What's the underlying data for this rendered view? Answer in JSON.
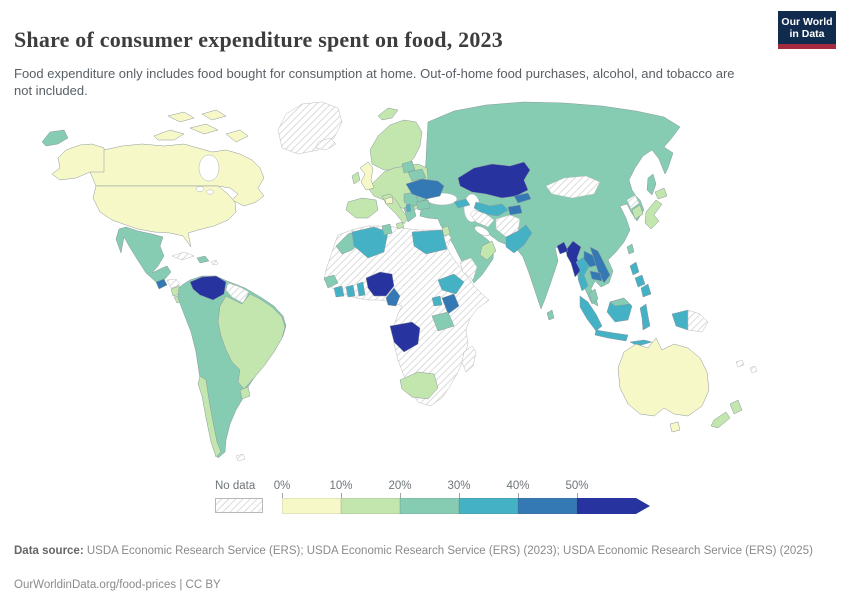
{
  "header": {
    "title": "Share of consumer expenditure spent on food, 2023",
    "subtitle": "Food expenditure only includes food bought for consumption at home. Out-of-home food purchases, alcohol, and tobacco are not included.",
    "logo": {
      "line1": "Our World",
      "line2": "in Data",
      "bg_color": "#102b4e",
      "bar_color": "#a62b3e"
    }
  },
  "legend": {
    "no_data_label": "No data",
    "tick_labels": [
      "0%",
      "10%",
      "20%",
      "30%",
      "40%",
      "50%"
    ],
    "colors": [
      "#f7f8c7",
      "#c3e5ae",
      "#85ccb2",
      "#45b1c5",
      "#3478b4",
      "#27339e"
    ]
  },
  "footer": {
    "source_label": "Data source:",
    "source_text": "USDA Economic Research Service (ERS); USDA Economic Research Service (ERS) (2023); USDA Economic Research Service (ERS) (2025)",
    "note": "OurWorldinData.org/food-prices | CC BY"
  },
  "chart_data": {
    "type": "choropleth-map",
    "title": "Share of consumer expenditure spent on food, 2023",
    "bins": [
      "0-10%",
      "10-20%",
      "20-30%",
      "30-40%",
      "40-50%",
      "50%+",
      "No data"
    ],
    "legend_position": "bottom",
    "countries": {
      "canada": 0,
      "united-states": 0,
      "australia": 0,
      "united-kingdom": 0,
      "switzerland": 0,
      "ireland": 1,
      "scandinavia": 1,
      "svalbard": 1,
      "europe-mainland": 1,
      "iberia": 1,
      "italy": 1,
      "south-korea": 1,
      "japan": 1,
      "oman": 1,
      "levant": 1,
      "costa-rica": 1,
      "panama": 1,
      "nicaragua": 1,
      "brazil": 1,
      "uruguay": 1,
      "chile": 1,
      "south-africa": 1,
      "new-zealand": 1,
      "eurasia": 2,
      "south-america": 2,
      "mexico": 2,
      "dominican-republic": 2,
      "belarus": 2,
      "baltics": 2,
      "romania": 2,
      "bulgaria": 2,
      "balkans": 2,
      "greece": 2,
      "morocco": 2,
      "tunisia": 2,
      "senegal": 2,
      "tanzania": 2,
      "taiwan": 2,
      "sri-lanka": 2,
      "malaysia": 2,
      "algeria": 3,
      "egypt": 3,
      "ivory-coast": 3,
      "ghana": 3,
      "togo-benin": 3,
      "ethiopia": 3,
      "uganda": 3,
      "caucasus": 3,
      "albania": 3,
      "uzbekistan": 3,
      "pakistan": 3,
      "thailand": 3,
      "philippines": 3,
      "indonesia": 3,
      "indonesia-papua": 3,
      "guatemala": 4,
      "ukraine": 4,
      "cameroon": 4,
      "kenya": 4,
      "kyrgyzstan": 4,
      "tajikistan": 4,
      "laos": 4,
      "vietnam": 4,
      "cambodia": 4,
      "venezuela": 5,
      "nigeria": 5,
      "angola": 5,
      "kazakhstan": 5,
      "myanmar": 5,
      "bangladesh": 5,
      "greenland": "no-data",
      "iceland": "no-data",
      "cuba": "no-data",
      "caribbean": "no-data",
      "honduras": "no-data",
      "guyanas": "no-data",
      "falkland-islands": "no-data",
      "africa": "no-data",
      "madagascar": "no-data",
      "mongolia": "no-data",
      "turkmenistan": "no-data",
      "afghanistan": "no-data",
      "yemen": "no-data",
      "north-korea": "no-data",
      "papua-new-guinea": "no-data",
      "pacific-islands": "no-data"
    }
  }
}
